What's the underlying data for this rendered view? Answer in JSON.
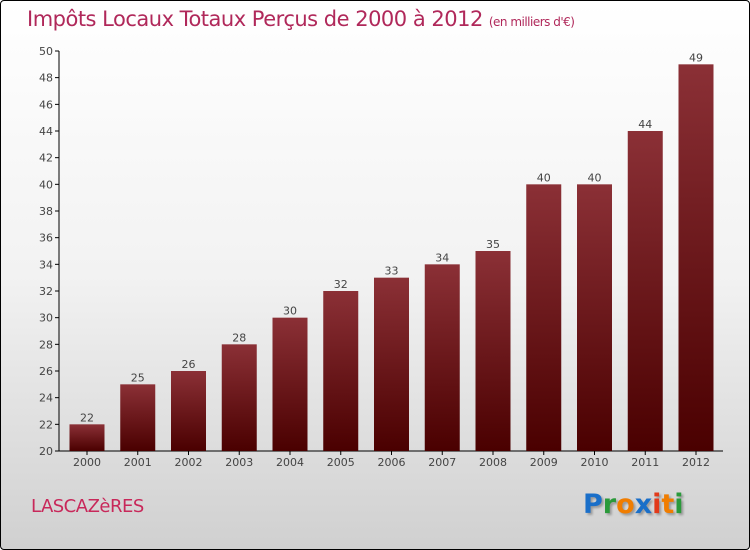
{
  "chart_data": {
    "type": "bar",
    "title": "Impôts Locaux Totaux Perçus de 2000 à 2012",
    "subtitle": "(en milliers d'€)",
    "categories": [
      "2000",
      "2001",
      "2002",
      "2003",
      "2004",
      "2005",
      "2006",
      "2007",
      "2008",
      "2009",
      "2010",
      "2011",
      "2012"
    ],
    "values": [
      22,
      25,
      26,
      28,
      30,
      32,
      33,
      34,
      35,
      40,
      40,
      44,
      49
    ],
    "ylim": [
      20,
      50
    ],
    "yticks": [
      20,
      22,
      24,
      26,
      28,
      30,
      32,
      34,
      36,
      38,
      40,
      42,
      44,
      46,
      48,
      50
    ],
    "xlabel": "",
    "ylabel": "",
    "bar_color_top": "#8b3036",
    "bar_color_bottom": "#4a0000"
  },
  "commune": "LASCAZèRES",
  "logo": {
    "letters": [
      "P",
      "r",
      "o",
      "x",
      "i",
      "t",
      "i"
    ],
    "colors": [
      "#1a6fc9",
      "#2a9a3a",
      "#f07d00",
      "#1a6fc9",
      "#e23a1a",
      "#f07d00",
      "#2a9a3a"
    ]
  }
}
